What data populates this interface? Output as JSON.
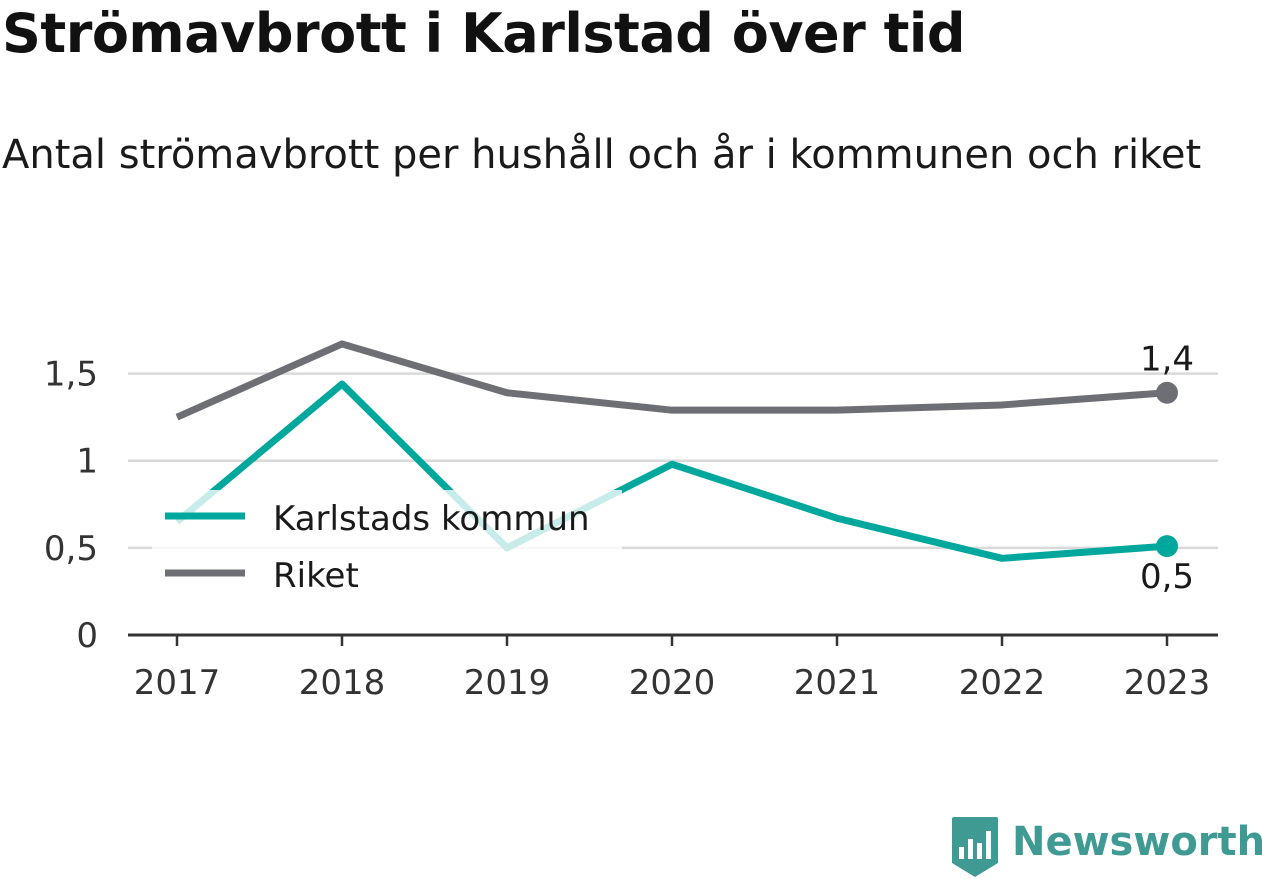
{
  "header": {
    "title": "Strömavbrott i Karlstad över tid",
    "subtitle": "Antal strömavbrott per hushåll och år i kommunen och riket"
  },
  "brand": {
    "name": "Newsworthy",
    "icon": "newsworthy-logo-icon",
    "color": "#3f9a94"
  },
  "colors": {
    "kommun": "#00a79d",
    "riket": "#6e6e75",
    "grid": "#d9d9d9",
    "axis": "#333333"
  },
  "chart_data": {
    "type": "line",
    "x": [
      "2017",
      "2018",
      "2019",
      "2020",
      "2021",
      "2022",
      "2023"
    ],
    "ylim": [
      0,
      1.75
    ],
    "yticks": [
      0,
      0.5,
      1,
      1.5
    ],
    "ytick_labels": [
      "0",
      "0,5",
      "1",
      "1,5"
    ],
    "grid": true,
    "legend_position": "left, inside plot area",
    "series": [
      {
        "name": "Karlstads kommun",
        "color": "#00a79d",
        "values": [
          0.65,
          1.44,
          0.5,
          0.98,
          0.67,
          0.44,
          0.51
        ],
        "end_label": "0,5"
      },
      {
        "name": "Riket",
        "color": "#6e6e75",
        "values": [
          1.25,
          1.67,
          1.39,
          1.29,
          1.29,
          1.32,
          1.39
        ],
        "end_label": "1,4"
      }
    ]
  }
}
